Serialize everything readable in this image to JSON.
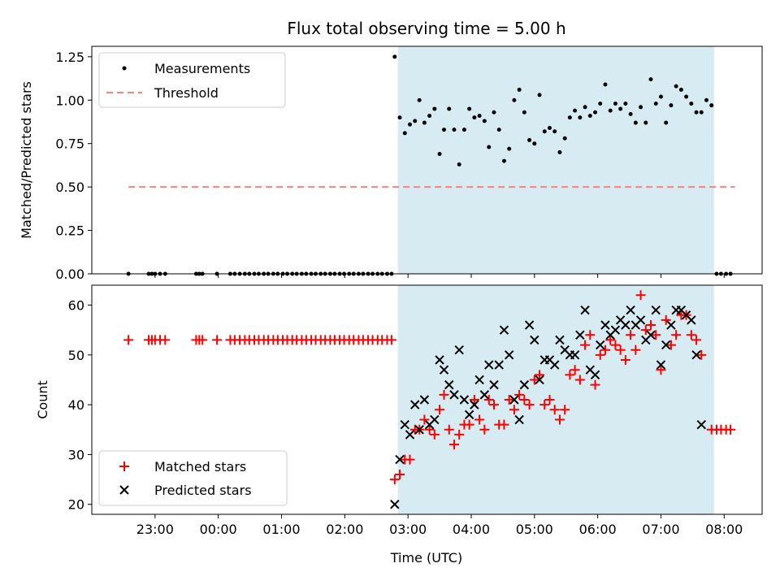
{
  "chart_data": {
    "type": "scatter",
    "title": "Flux total observing time = 5.00 h",
    "xlabel": "Time (UTC)",
    "x_unit": "hours relative to 00:00 UTC",
    "xlim": [
      -2.0,
      8.6
    ],
    "x_ticks": [
      {
        "x": -1.0,
        "label": "23:00"
      },
      {
        "x": 0.0,
        "label": "00:00"
      },
      {
        "x": 1.0,
        "label": "01:00"
      },
      {
        "x": 2.0,
        "label": "02:00"
      },
      {
        "x": 3.0,
        "label": "03:00"
      },
      {
        "x": 4.0,
        "label": "04:00"
      },
      {
        "x": 5.0,
        "label": "05:00"
      },
      {
        "x": 6.0,
        "label": "06:00"
      },
      {
        "x": 7.0,
        "label": "07:00"
      },
      {
        "x": 8.0,
        "label": "08:00"
      }
    ],
    "observing_window": [
      2.84,
      7.84
    ],
    "top": {
      "ylabel": "Matched/Predicted stars",
      "ylim": [
        0,
        1.31
      ],
      "y_ticks": [
        {
          "y": 0.0,
          "label": "0.00"
        },
        {
          "y": 0.25,
          "label": "0.25"
        },
        {
          "y": 0.5,
          "label": "0.50"
        },
        {
          "y": 0.75,
          "label": "0.75"
        },
        {
          "y": 1.0,
          "label": "1.00"
        },
        {
          "y": 1.25,
          "label": "1.25"
        }
      ],
      "threshold": {
        "name": "Threshold",
        "y": 0.5,
        "x_range": [
          -1.42,
          8.17
        ],
        "color": "#ff7f7f"
      },
      "measurements": {
        "name": "Measurements",
        "color": "#000000",
        "points": [
          [
            -1.42,
            0
          ],
          [
            -1.1,
            0
          ],
          [
            -1.05,
            0
          ],
          [
            -1.0,
            0
          ],
          [
            -0.92,
            0
          ],
          [
            -0.84,
            0
          ],
          [
            -0.35,
            0
          ],
          [
            -0.3,
            0
          ],
          [
            -0.25,
            0
          ],
          [
            -0.02,
            0
          ],
          [
            0.19,
            0
          ],
          [
            0.26,
            0
          ],
          [
            0.34,
            0
          ],
          [
            0.42,
            0
          ],
          [
            0.49,
            0
          ],
          [
            0.57,
            0
          ],
          [
            0.64,
            0
          ],
          [
            0.72,
            0
          ],
          [
            0.79,
            0
          ],
          [
            0.87,
            0
          ],
          [
            0.94,
            0
          ],
          [
            1.02,
            0
          ],
          [
            1.09,
            0
          ],
          [
            1.17,
            0
          ],
          [
            1.24,
            0
          ],
          [
            1.32,
            0
          ],
          [
            1.39,
            0
          ],
          [
            1.47,
            0
          ],
          [
            1.54,
            0
          ],
          [
            1.62,
            0
          ],
          [
            1.69,
            0
          ],
          [
            1.77,
            0
          ],
          [
            1.84,
            0
          ],
          [
            1.92,
            0
          ],
          [
            1.99,
            0
          ],
          [
            2.07,
            0
          ],
          [
            2.14,
            0
          ],
          [
            2.22,
            0
          ],
          [
            2.29,
            0
          ],
          [
            2.37,
            0
          ],
          [
            2.44,
            0
          ],
          [
            2.52,
            0
          ],
          [
            2.59,
            0
          ],
          [
            2.67,
            0
          ],
          [
            2.74,
            0
          ],
          [
            2.79,
            1.25
          ],
          [
            2.87,
            0.9
          ],
          [
            2.95,
            0.81
          ],
          [
            3.03,
            0.86
          ],
          [
            3.11,
            0.88
          ],
          [
            3.18,
            1.0
          ],
          [
            3.26,
            0.87
          ],
          [
            3.34,
            0.91
          ],
          [
            3.42,
            0.95
          ],
          [
            3.5,
            0.69
          ],
          [
            3.57,
            0.83
          ],
          [
            3.65,
            0.95
          ],
          [
            3.73,
            0.83
          ],
          [
            3.81,
            0.63
          ],
          [
            3.89,
            0.83
          ],
          [
            3.97,
            0.95
          ],
          [
            4.05,
            0.9
          ],
          [
            4.13,
            0.91
          ],
          [
            4.21,
            0.88
          ],
          [
            4.28,
            0.73
          ],
          [
            4.36,
            0.93
          ],
          [
            4.44,
            0.83
          ],
          [
            4.52,
            0.65
          ],
          [
            4.6,
            0.72
          ],
          [
            4.68,
            1.0
          ],
          [
            4.76,
            1.06
          ],
          [
            4.84,
            0.93
          ],
          [
            4.92,
            0.77
          ],
          [
            5.0,
            0.75
          ],
          [
            5.08,
            1.03
          ],
          [
            5.16,
            0.82
          ],
          [
            5.24,
            0.84
          ],
          [
            5.32,
            0.82
          ],
          [
            5.4,
            0.7
          ],
          [
            5.48,
            0.78
          ],
          [
            5.56,
            0.9
          ],
          [
            5.64,
            0.94
          ],
          [
            5.72,
            0.9
          ],
          [
            5.8,
            0.96
          ],
          [
            5.88,
            0.91
          ],
          [
            5.96,
            0.93
          ],
          [
            6.04,
            0.98
          ],
          [
            6.12,
            1.09
          ],
          [
            6.2,
            0.94
          ],
          [
            6.28,
            0.98
          ],
          [
            6.36,
            0.95
          ],
          [
            6.44,
            0.98
          ],
          [
            6.52,
            0.92
          ],
          [
            6.6,
            0.87
          ],
          [
            6.68,
            0.96
          ],
          [
            6.76,
            0.87
          ],
          [
            6.84,
            1.12
          ],
          [
            6.92,
            0.98
          ],
          [
            7.0,
            1.02
          ],
          [
            7.08,
            0.87
          ],
          [
            7.16,
            0.97
          ],
          [
            7.24,
            1.08
          ],
          [
            7.32,
            1.06
          ],
          [
            7.4,
            1.02
          ],
          [
            7.48,
            0.98
          ],
          [
            7.56,
            0.93
          ],
          [
            7.64,
            0.93
          ],
          [
            7.72,
            1.0
          ],
          [
            7.8,
            0.97
          ],
          [
            7.88,
            0
          ],
          [
            7.95,
            0
          ],
          [
            8.03,
            0
          ],
          [
            8.1,
            0
          ]
        ]
      },
      "legend": {
        "placement": "upper left",
        "entries": [
          "Measurements",
          "Threshold"
        ]
      }
    },
    "bottom": {
      "ylabel": "Count",
      "ylim": [
        18,
        64
      ],
      "y_ticks": [
        {
          "y": 20,
          "label": "20"
        },
        {
          "y": 30,
          "label": "30"
        },
        {
          "y": 40,
          "label": "40"
        },
        {
          "y": 50,
          "label": "50"
        },
        {
          "y": 60,
          "label": "60"
        }
      ],
      "matched": {
        "name": "Matched stars",
        "color": "#ff0000",
        "marker": "plus",
        "points": [
          [
            -1.42,
            53
          ],
          [
            -1.1,
            53
          ],
          [
            -1.05,
            53
          ],
          [
            -1.0,
            53
          ],
          [
            -0.92,
            53
          ],
          [
            -0.84,
            53
          ],
          [
            -0.35,
            53
          ],
          [
            -0.3,
            53
          ],
          [
            -0.25,
            53
          ],
          [
            -0.02,
            53
          ],
          [
            0.19,
            53
          ],
          [
            0.26,
            53
          ],
          [
            0.34,
            53
          ],
          [
            0.42,
            53
          ],
          [
            0.49,
            53
          ],
          [
            0.57,
            53
          ],
          [
            0.64,
            53
          ],
          [
            0.72,
            53
          ],
          [
            0.79,
            53
          ],
          [
            0.87,
            53
          ],
          [
            0.94,
            53
          ],
          [
            1.02,
            53
          ],
          [
            1.09,
            53
          ],
          [
            1.17,
            53
          ],
          [
            1.24,
            53
          ],
          [
            1.32,
            53
          ],
          [
            1.39,
            53
          ],
          [
            1.47,
            53
          ],
          [
            1.54,
            53
          ],
          [
            1.62,
            53
          ],
          [
            1.69,
            53
          ],
          [
            1.77,
            53
          ],
          [
            1.84,
            53
          ],
          [
            1.92,
            53
          ],
          [
            1.99,
            53
          ],
          [
            2.07,
            53
          ],
          [
            2.14,
            53
          ],
          [
            2.22,
            53
          ],
          [
            2.29,
            53
          ],
          [
            2.37,
            53
          ],
          [
            2.44,
            53
          ],
          [
            2.52,
            53
          ],
          [
            2.59,
            53
          ],
          [
            2.67,
            53
          ],
          [
            2.74,
            53
          ],
          [
            2.79,
            25
          ],
          [
            2.87,
            26
          ],
          [
            2.95,
            29
          ],
          [
            3.03,
            29
          ],
          [
            3.11,
            35
          ],
          [
            3.18,
            35
          ],
          [
            3.26,
            37
          ],
          [
            3.34,
            35
          ],
          [
            3.42,
            34
          ],
          [
            3.5,
            39
          ],
          [
            3.57,
            42
          ],
          [
            3.65,
            35
          ],
          [
            3.73,
            32
          ],
          [
            3.81,
            34
          ],
          [
            3.89,
            36
          ],
          [
            3.97,
            36
          ],
          [
            4.05,
            41
          ],
          [
            4.13,
            37
          ],
          [
            4.21,
            35
          ],
          [
            4.28,
            41
          ],
          [
            4.36,
            40
          ],
          [
            4.44,
            36
          ],
          [
            4.52,
            36
          ],
          [
            4.6,
            41
          ],
          [
            4.68,
            39
          ],
          [
            4.76,
            42
          ],
          [
            4.84,
            41
          ],
          [
            4.92,
            40
          ],
          [
            5.0,
            45
          ],
          [
            5.08,
            46
          ],
          [
            5.16,
            40
          ],
          [
            5.24,
            41
          ],
          [
            5.32,
            39
          ],
          [
            5.4,
            37
          ],
          [
            5.48,
            39
          ],
          [
            5.56,
            46
          ],
          [
            5.64,
            47
          ],
          [
            5.72,
            45
          ],
          [
            5.8,
            52
          ],
          [
            5.88,
            54
          ],
          [
            5.96,
            44
          ],
          [
            6.04,
            50
          ],
          [
            6.12,
            51
          ],
          [
            6.2,
            53
          ],
          [
            6.28,
            52
          ],
          [
            6.36,
            51
          ],
          [
            6.44,
            49
          ],
          [
            6.52,
            54
          ],
          [
            6.6,
            51
          ],
          [
            6.68,
            62
          ],
          [
            6.76,
            55
          ],
          [
            6.84,
            56
          ],
          [
            6.92,
            54
          ],
          [
            7.0,
            47
          ],
          [
            7.08,
            57
          ],
          [
            7.16,
            52
          ],
          [
            7.24,
            54
          ],
          [
            7.32,
            58
          ],
          [
            7.4,
            58
          ],
          [
            7.48,
            54
          ],
          [
            7.56,
            53
          ],
          [
            7.64,
            50
          ],
          [
            7.8,
            35
          ],
          [
            7.88,
            35
          ],
          [
            7.95,
            35
          ],
          [
            8.03,
            35
          ],
          [
            8.1,
            35
          ]
        ]
      },
      "predicted": {
        "name": "Predicted stars",
        "color": "#000000",
        "marker": "x",
        "points": [
          [
            2.79,
            20
          ],
          [
            2.87,
            29
          ],
          [
            2.95,
            36
          ],
          [
            3.03,
            34
          ],
          [
            3.11,
            40
          ],
          [
            3.18,
            35
          ],
          [
            3.26,
            41
          ],
          [
            3.34,
            36
          ],
          [
            3.42,
            37
          ],
          [
            3.5,
            49
          ],
          [
            3.57,
            47
          ],
          [
            3.65,
            44
          ],
          [
            3.73,
            42
          ],
          [
            3.81,
            51
          ],
          [
            3.89,
            41
          ],
          [
            3.97,
            38
          ],
          [
            4.05,
            40
          ],
          [
            4.13,
            45
          ],
          [
            4.21,
            42
          ],
          [
            4.28,
            48
          ],
          [
            4.36,
            44
          ],
          [
            4.44,
            48
          ],
          [
            4.52,
            55
          ],
          [
            4.6,
            50
          ],
          [
            4.68,
            41
          ],
          [
            4.76,
            37
          ],
          [
            4.84,
            44
          ],
          [
            4.92,
            56
          ],
          [
            5.0,
            53
          ],
          [
            5.08,
            45
          ],
          [
            5.16,
            49
          ],
          [
            5.24,
            49
          ],
          [
            5.32,
            48
          ],
          [
            5.4,
            53
          ],
          [
            5.48,
            51
          ],
          [
            5.56,
            50
          ],
          [
            5.64,
            50
          ],
          [
            5.72,
            54
          ],
          [
            5.8,
            59
          ],
          [
            5.88,
            47
          ],
          [
            5.96,
            46
          ],
          [
            6.04,
            52
          ],
          [
            6.12,
            56
          ],
          [
            6.2,
            54
          ],
          [
            6.28,
            55
          ],
          [
            6.36,
            57
          ],
          [
            6.44,
            56
          ],
          [
            6.52,
            59
          ],
          [
            6.6,
            56
          ],
          [
            6.68,
            57
          ],
          [
            6.76,
            53
          ],
          [
            6.84,
            54
          ],
          [
            6.92,
            59
          ],
          [
            7.0,
            48
          ],
          [
            7.08,
            52
          ],
          [
            7.16,
            56
          ],
          [
            7.24,
            59
          ],
          [
            7.32,
            59
          ],
          [
            7.4,
            58
          ],
          [
            7.48,
            57
          ],
          [
            7.56,
            50
          ],
          [
            7.64,
            36
          ]
        ]
      },
      "legend": {
        "placement": "lower left",
        "entries": [
          "Matched stars",
          "Predicted stars"
        ]
      }
    },
    "colors": {
      "window_fill": "#add8e6",
      "threshold": "#ff7f7f",
      "matched": "#ff0000",
      "predicted": "#000000"
    }
  }
}
